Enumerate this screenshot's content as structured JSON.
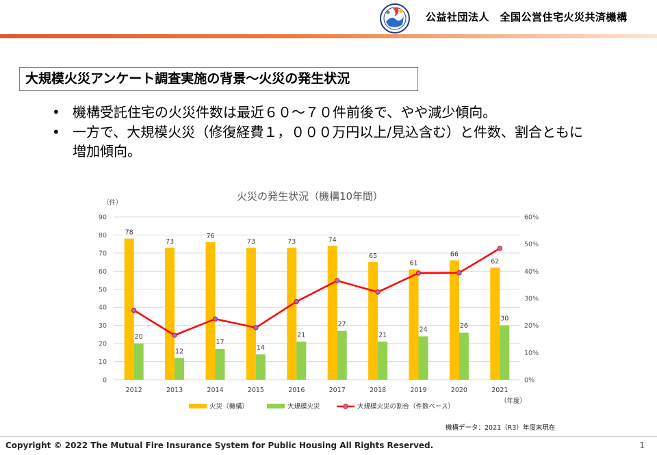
{
  "header": {
    "org_name": "公益社団法人　全国公営住宅火災共済機構"
  },
  "slide": {
    "title": "大規模火災アンケート調査実施の背景～火災の発生状況",
    "bullets": [
      "機構受託住宅の火災件数は最近６０～７０件前後で、やや減少傾向。",
      "一方で、大規模火災（修復経費１，０００万円以上/見込含む）と件数、割合ともに増加傾向。"
    ],
    "note": "機構データ：2021（R3）年度末現在"
  },
  "chart_data": {
    "type": "bar",
    "title": "火災の発生状況（機構10年間）",
    "categories": [
      "2012",
      "2013",
      "2014",
      "2015",
      "2016",
      "2017",
      "2018",
      "2019",
      "2020",
      "2021"
    ],
    "ylabel": "（件）",
    "xlabel": "（年度）",
    "ylim": [
      0,
      90
    ],
    "yticks": [
      0,
      10,
      20,
      30,
      40,
      50,
      60,
      70,
      80,
      90
    ],
    "y2lim": [
      0,
      0.6
    ],
    "y2ticks": [
      "0%",
      "10%",
      "20%",
      "30%",
      "40%",
      "50%",
      "60%"
    ],
    "grid": true,
    "legend_position": "bottom",
    "series": [
      {
        "name": "火災（機構）",
        "type": "bar",
        "color": "#ffc000",
        "values": [
          78,
          73,
          76,
          73,
          73,
          74,
          65,
          61,
          66,
          62
        ]
      },
      {
        "name": "大規模火災",
        "type": "bar",
        "color": "#92d050",
        "values": [
          20,
          12,
          17,
          14,
          21,
          27,
          21,
          24,
          26,
          30
        ]
      },
      {
        "name": "大規模火災の割合（件数ベース）",
        "type": "line",
        "axis": "secondary",
        "color": "#ff0000",
        "marker_color": "#7f7fd5",
        "values": [
          0.256,
          0.164,
          0.224,
          0.192,
          0.288,
          0.365,
          0.323,
          0.393,
          0.394,
          0.484
        ]
      }
    ]
  },
  "footer": {
    "copyright": "Copyright © 2022 The Mutual Fire Insurance System for Public Housing  All Rights Reserved.",
    "page": "1"
  }
}
